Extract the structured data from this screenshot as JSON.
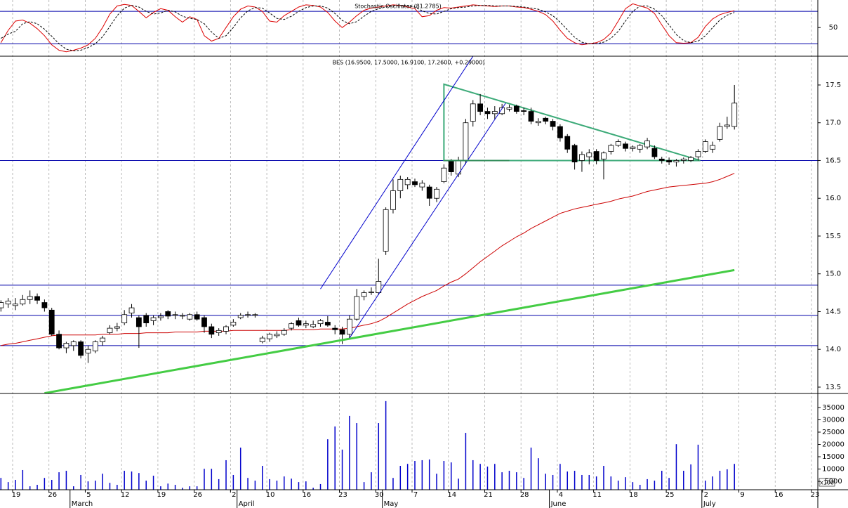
{
  "chart_data": {
    "type": "candlestick",
    "title": "BES (16.9500, 17.5000, 16.9100, 17.2600, +0.29000)",
    "categories": [
      null,
      null,
      "19",
      null,
      null,
      null,
      null,
      "26",
      null,
      null,
      null,
      null,
      "5",
      null,
      null,
      null,
      null,
      "12",
      null,
      null,
      null,
      null,
      "19",
      null,
      null,
      null,
      null,
      "26",
      null,
      null,
      null,
      null,
      "2",
      null,
      null,
      null,
      null,
      "10",
      null,
      null,
      null,
      null,
      "16",
      null,
      null,
      null,
      null,
      "23",
      null,
      null,
      null,
      null,
      "30",
      null,
      null,
      null,
      null,
      "7",
      null,
      null,
      null,
      null,
      "14",
      null,
      null,
      null,
      null,
      "21",
      null,
      null,
      null,
      null,
      "28",
      null,
      null,
      null,
      null,
      "4",
      null,
      null,
      null,
      null,
      "11",
      null,
      null,
      null,
      null,
      "18",
      null,
      null,
      null,
      null,
      "25",
      null,
      null,
      null,
      null,
      "2",
      null,
      null,
      null,
      null,
      "9",
      null,
      null,
      null,
      null,
      "16",
      null,
      null,
      null,
      null,
      "23"
    ],
    "months": [
      {
        "value": 10,
        "label": "March"
      },
      {
        "value": 33,
        "label": "April"
      },
      {
        "value": 53,
        "label": "May"
      },
      {
        "value": 76,
        "label": "June"
      },
      {
        "value": 97,
        "label": "July"
      }
    ],
    "open": [
      14.55,
      14.6,
      14.58,
      14.6,
      14.66,
      14.7,
      14.62,
      14.52,
      14.2,
      14.02,
      14.05,
      14.1,
      13.95,
      13.98,
      14.1,
      14.22,
      14.28,
      14.35,
      14.48,
      14.42,
      14.45,
      14.38,
      14.42,
      14.5,
      14.45,
      14.44,
      14.4,
      14.46,
      14.42,
      14.3,
      14.22,
      14.24,
      14.32,
      14.42,
      14.45,
      14.45,
      14.1,
      14.14,
      14.18,
      14.2,
      14.28,
      14.38,
      14.32,
      14.3,
      14.34,
      14.36,
      14.28,
      14.26,
      14.2,
      14.4,
      14.7,
      14.75,
      14.75,
      15.3,
      15.85,
      16.1,
      16.18,
      16.22,
      16.15,
      16.15,
      16.0,
      16.22,
      16.5,
      16.32,
      16.5,
      17.02,
      17.25,
      17.15,
      17.12,
      17.12,
      17.18,
      17.22,
      17.16,
      17.15,
      17.0,
      17.06,
      17.02,
      16.95,
      16.82,
      16.7,
      16.5,
      16.55,
      16.62,
      16.52,
      16.62,
      16.7,
      16.72,
      16.66,
      16.65,
      16.68,
      16.66,
      16.52,
      16.5,
      16.48,
      16.5,
      16.5,
      16.55,
      16.62,
      16.65,
      16.78,
      16.95,
      16.95,
      null,
      null,
      null,
      null,
      null,
      null,
      null,
      null,
      null,
      null,
      null
    ],
    "high": [
      14.65,
      14.68,
      14.68,
      14.72,
      14.78,
      14.74,
      14.66,
      14.55,
      14.25,
      14.1,
      14.12,
      14.12,
      14.05,
      14.12,
      14.18,
      14.32,
      14.35,
      14.52,
      14.6,
      14.45,
      14.48,
      14.45,
      14.48,
      14.52,
      14.5,
      14.48,
      14.48,
      14.5,
      14.45,
      14.34,
      14.28,
      14.32,
      14.4,
      14.48,
      14.5,
      14.48,
      14.18,
      14.22,
      14.24,
      14.28,
      14.36,
      14.42,
      14.38,
      14.38,
      14.4,
      14.44,
      14.32,
      14.3,
      14.45,
      14.8,
      14.78,
      14.82,
      15.2,
      15.88,
      16.25,
      16.3,
      16.28,
      16.26,
      16.24,
      16.18,
      16.15,
      16.45,
      16.52,
      16.55,
      17.05,
      17.3,
      17.38,
      17.2,
      17.22,
      17.25,
      17.24,
      17.24,
      17.2,
      17.2,
      17.06,
      17.08,
      17.05,
      16.98,
      16.85,
      16.72,
      16.62,
      16.65,
      16.65,
      16.62,
      16.72,
      16.78,
      16.75,
      16.7,
      16.72,
      16.8,
      16.7,
      16.55,
      16.54,
      16.52,
      16.54,
      16.56,
      16.65,
      16.78,
      16.75,
      17.0,
      17.08,
      17.5,
      null,
      null,
      null,
      null,
      null,
      null,
      null,
      null,
      null,
      null,
      null
    ],
    "low": [
      14.5,
      14.55,
      14.52,
      14.58,
      14.6,
      14.6,
      14.5,
      14.18,
      14.0,
      13.95,
      13.98,
      13.88,
      13.82,
      13.95,
      14.05,
      14.2,
      14.24,
      14.32,
      14.42,
      14.02,
      14.3,
      14.32,
      14.38,
      14.4,
      14.4,
      14.4,
      14.38,
      14.38,
      14.22,
      14.15,
      14.18,
      14.2,
      14.3,
      14.4,
      14.42,
      14.42,
      14.08,
      14.1,
      14.15,
      14.18,
      14.25,
      14.3,
      14.28,
      14.28,
      14.3,
      14.3,
      14.2,
      14.07,
      14.15,
      14.38,
      14.65,
      14.72,
      14.72,
      15.25,
      15.8,
      16.0,
      16.12,
      16.15,
      16.1,
      15.9,
      15.95,
      16.2,
      16.3,
      16.28,
      16.45,
      16.95,
      17.1,
      17.05,
      17.05,
      17.1,
      17.15,
      17.12,
      17.1,
      16.98,
      16.96,
      16.98,
      16.9,
      16.75,
      16.6,
      16.38,
      16.35,
      16.45,
      16.45,
      16.25,
      16.58,
      16.68,
      16.62,
      16.62,
      16.6,
      16.65,
      16.52,
      16.46,
      16.44,
      16.42,
      16.46,
      16.48,
      16.5,
      16.6,
      16.6,
      16.75,
      16.92,
      16.91,
      null,
      null,
      null,
      null,
      null,
      null,
      null,
      null,
      null,
      null,
      null
    ],
    "close": [
      14.62,
      14.64,
      14.6,
      14.66,
      14.7,
      14.65,
      14.55,
      14.2,
      14.02,
      14.08,
      14.1,
      13.92,
      14.0,
      14.1,
      14.15,
      14.28,
      14.3,
      14.46,
      14.55,
      14.3,
      14.35,
      14.42,
      14.44,
      14.44,
      14.46,
      14.45,
      14.46,
      14.4,
      14.3,
      14.2,
      14.25,
      14.3,
      14.36,
      14.45,
      14.46,
      14.46,
      14.15,
      14.2,
      14.2,
      14.25,
      14.34,
      14.32,
      14.34,
      14.33,
      14.38,
      14.32,
      14.26,
      14.2,
      14.4,
      14.7,
      14.75,
      14.76,
      14.9,
      15.85,
      16.1,
      16.25,
      16.25,
      16.18,
      16.2,
      16.0,
      16.12,
      16.4,
      16.35,
      16.5,
      17.0,
      17.25,
      17.15,
      17.12,
      17.15,
      17.2,
      17.2,
      17.15,
      17.15,
      17.02,
      17.02,
      17.02,
      16.95,
      16.8,
      16.65,
      16.48,
      16.58,
      16.6,
      16.5,
      16.6,
      16.7,
      16.75,
      16.66,
      16.68,
      16.7,
      16.76,
      16.55,
      16.5,
      16.48,
      16.5,
      16.52,
      16.54,
      16.62,
      16.75,
      16.7,
      16.95,
      16.97,
      17.26,
      null,
      null,
      null,
      null,
      null,
      null,
      null,
      null,
      null,
      null,
      null
    ],
    "moving_average": {
      "color": "#cc0000",
      "values": [
        14.05,
        14.07,
        14.08,
        14.1,
        14.12,
        14.14,
        14.16,
        14.18,
        14.19,
        14.19,
        14.19,
        14.19,
        14.19,
        14.19,
        14.2,
        14.2,
        14.2,
        14.21,
        14.21,
        14.21,
        14.22,
        14.22,
        14.22,
        14.22,
        14.23,
        14.23,
        14.23,
        14.23,
        14.24,
        14.24,
        14.24,
        14.24,
        14.25,
        14.25,
        14.25,
        14.25,
        14.25,
        14.25,
        14.25,
        14.25,
        14.26,
        14.26,
        14.26,
        14.26,
        14.27,
        14.27,
        14.27,
        14.27,
        14.28,
        14.3,
        14.32,
        14.34,
        14.37,
        14.42,
        14.48,
        14.54,
        14.6,
        14.65,
        14.7,
        14.74,
        14.78,
        14.84,
        14.89,
        14.93,
        15.0,
        15.08,
        15.16,
        15.23,
        15.3,
        15.37,
        15.43,
        15.49,
        15.54,
        15.6,
        15.65,
        15.7,
        15.75,
        15.8,
        15.83,
        15.86,
        15.88,
        15.9,
        15.92,
        15.94,
        15.96,
        15.99,
        16.01,
        16.03,
        16.06,
        16.09,
        16.11,
        16.13,
        16.15,
        16.16,
        16.17,
        16.18,
        16.19,
        16.2,
        16.22,
        16.25,
        16.29,
        16.33,
        null,
        null,
        null,
        null,
        null,
        null,
        null,
        null,
        null,
        null,
        null
      ]
    },
    "up_color": "#ffffff",
    "down_color": "#000000",
    "ylim": [
      13.416,
      17.881
    ],
    "yticks": [
      {
        "value": 13.5,
        "label": "13.5"
      },
      {
        "value": 14,
        "label": "14.0"
      },
      14.5,
      {
        "value": 15,
        "label": "15.0"
      },
      15.5,
      {
        "value": 16,
        "label": "16.0"
      },
      16.5,
      {
        "value": 17,
        "label": "17.0"
      },
      17.5
    ],
    "hlines": {
      "color": "#0000aa",
      "values": [
        16.5,
        14.85,
        14.45,
        14.05
      ]
    },
    "trendlines": [
      {
        "color": "#44cc44",
        "line_width": 3,
        "x": [
          6,
          101
        ],
        "y": [
          13.42,
          15.05
        ]
      },
      {
        "color": "#0000cc",
        "line_width": 1,
        "x": [
          44,
          65
        ],
        "y": [
          14.8,
          17.88
        ]
      },
      {
        "color": "#0000cc",
        "line_width": 1,
        "x": [
          48,
          69.5
        ],
        "y": [
          14.15,
          17.26
        ]
      },
      {
        "color": "#2e8b57",
        "line_width": 2,
        "x": [
          61,
          70
        ],
        "y": [
          16.5,
          16.5
        ]
      }
    ],
    "triangle": {
      "color": "#3caa78",
      "x": [
        61,
        61,
        96.3
      ],
      "y": [
        17.51,
        16.5,
        16.5
      ]
    },
    "volume": {
      "type": "bar",
      "color": "#0000cc",
      "unit_label": "x100",
      "values": [
        6400,
        4700,
        5600,
        9600,
        3000,
        3600,
        6400,
        5600,
        8700,
        9300,
        3000,
        7600,
        5000,
        5300,
        8100,
        4400,
        3600,
        9300,
        9000,
        8400,
        5300,
        7300,
        3000,
        4100,
        3600,
        2400,
        3000,
        3000,
        10100,
        10100,
        5900,
        13600,
        7600,
        18700,
        6400,
        5300,
        11300,
        5900,
        5300,
        7000,
        6100,
        4700,
        5000,
        2400,
        3900,
        22100,
        27300,
        17900,
        31600,
        28700,
        4700,
        8700,
        28700,
        37600,
        6400,
        11300,
        12100,
        13300,
        13600,
        13900,
        8100,
        13300,
        12700,
        6100,
        24700,
        13600,
        12100,
        11000,
        12100,
        8700,
        9300,
        8700,
        6400,
        18700,
        14400,
        8100,
        7600,
        12100,
        9000,
        9300,
        7600,
        7600,
        7000,
        11300,
        7000,
        5300,
        6700,
        4700,
        3600,
        5900,
        5300,
        9300,
        6400,
        20100,
        9300,
        11900,
        19900,
        5300,
        7000,
        9300,
        9900,
        12100,
        null,
        null,
        null,
        null,
        null,
        null,
        null,
        null,
        null,
        null,
        null
      ],
      "ylim": [
        1600,
        40700
      ],
      "yticks": [
        5000,
        10000,
        15000,
        20000,
        25000,
        30000,
        35000
      ]
    },
    "stochastic": {
      "type": "line",
      "title": "Stochastic Oscillator (81.2785)",
      "ylim": [
        -3,
        101
      ],
      "yticks": [
        50
      ],
      "levels": {
        "color": "#0000aa",
        "values": [
          80,
          20
        ]
      },
      "series": [
        {
          "color": "#dd0000",
          "dashed": false,
          "values": [
            22,
            45,
            62,
            64,
            58,
            48,
            35,
            18,
            8,
            5,
            8,
            12,
            18,
            30,
            50,
            75,
            90,
            93,
            91,
            80,
            68,
            78,
            85,
            82,
            70,
            60,
            70,
            65,
            35,
            25,
            30,
            50,
            70,
            84,
            90,
            88,
            80,
            62,
            60,
            72,
            80,
            88,
            92,
            91,
            88,
            78,
            62,
            50,
            60,
            72,
            82,
            86,
            88,
            90,
            92,
            91,
            88,
            85,
            70,
            72,
            82,
            87,
            86,
            88,
            90,
            92,
            91,
            90,
            89,
            90,
            90,
            88,
            87,
            84,
            80,
            74,
            62,
            45,
            30,
            22,
            18,
            20,
            22,
            28,
            40,
            62,
            85,
            94,
            90,
            86,
            76,
            55,
            35,
            22,
            21,
            22,
            32,
            52,
            66,
            74,
            78,
            81.2785,
            null,
            null,
            null,
            null,
            null,
            null,
            null,
            null,
            null,
            null,
            null
          ]
        },
        {
          "color": "#000000",
          "dashed": true,
          "values": [
            30,
            38,
            43,
            57,
            61,
            57,
            47,
            34,
            20,
            10,
            7,
            8,
            13,
            20,
            33,
            52,
            72,
            86,
            91,
            88,
            80,
            75,
            77,
            82,
            79,
            71,
            67,
            65,
            57,
            42,
            30,
            35,
            50,
            68,
            81,
            87,
            86,
            77,
            67,
            65,
            71,
            80,
            87,
            90,
            90,
            86,
            76,
            63,
            57,
            61,
            71,
            80,
            85,
            88,
            90,
            91,
            90,
            88,
            81,
            76,
            75,
            80,
            85,
            87,
            88,
            90,
            91,
            91,
            90,
            90,
            90,
            89,
            88,
            86,
            84,
            79,
            72,
            60,
            46,
            32,
            23,
            20,
            20,
            23,
            30,
            43,
            62,
            80,
            90,
            90,
            84,
            72,
            55,
            37,
            26,
            22,
            25,
            35,
            50,
            64,
            73,
            78,
            null,
            null,
            null,
            null,
            null,
            null,
            null,
            null,
            null,
            null,
            null
          ]
        }
      ]
    }
  }
}
